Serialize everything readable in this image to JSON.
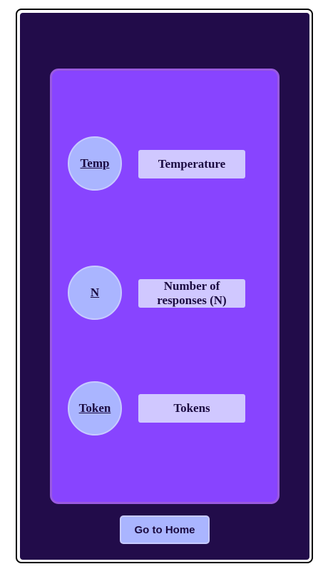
{
  "params": {
    "items": [
      {
        "short": "Temp",
        "label": "Temperature"
      },
      {
        "short": "N",
        "label": "Number of responses (N)"
      },
      {
        "short": "Token",
        "label": "Tokens"
      }
    ]
  },
  "footer": {
    "home_label": "Go to Home"
  },
  "colors": {
    "background": "#220c4a",
    "panel": "#8844ff",
    "circle": "#aab5ff",
    "label_box": "#d0c8ff",
    "text": "#1a0a40"
  }
}
